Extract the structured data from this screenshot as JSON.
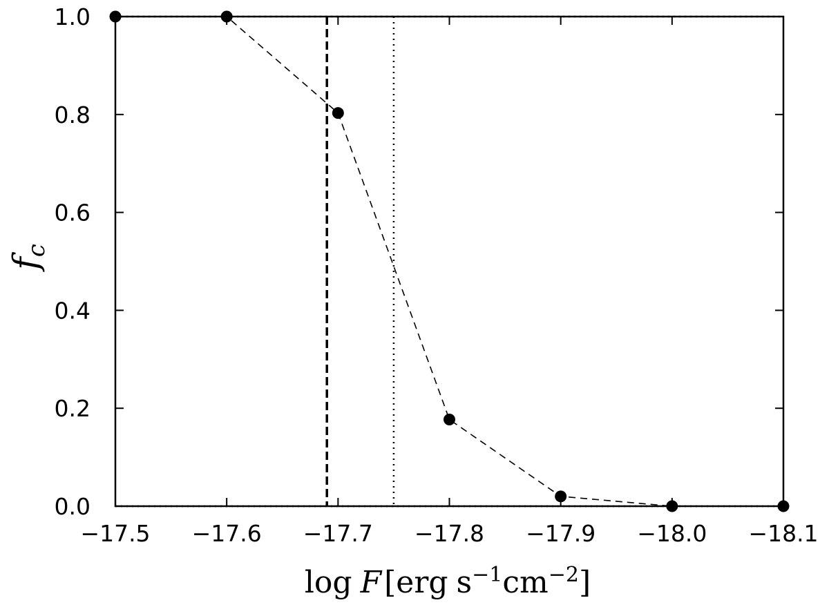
{
  "chart_data": {
    "type": "line",
    "xlabel": "log F [erg s⁻¹cm⁻²]",
    "xlabel_parts": {
      "log": "log",
      "var": "F",
      "bracket_open": "[",
      "erg": "erg",
      "s": "s",
      "s_exp": "−1",
      "cm": "cm",
      "cm_exp": "−2",
      "bracket_close": "]"
    },
    "ylabel": "f",
    "ylabel_sub": "c",
    "xlim": [
      -17.5,
      -18.1
    ],
    "ylim": [
      0.0,
      1.0
    ],
    "x_axis_inverted": true,
    "x_ticks": [
      -17.5,
      -17.6,
      -17.7,
      -17.8,
      -17.9,
      -18.0,
      -18.1
    ],
    "x_tick_labels": [
      "−17.5",
      "−17.6",
      "−17.7",
      "−17.8",
      "−17.9",
      "−18.0",
      "−18.1"
    ],
    "y_ticks": [
      0.0,
      0.2,
      0.4,
      0.6,
      0.8,
      1.0
    ],
    "y_tick_labels": [
      "0.0",
      "0.2",
      "0.4",
      "0.6",
      "0.8",
      "1.0"
    ],
    "series": [
      {
        "x": [
          -17.5,
          -17.6,
          -17.7,
          -17.8,
          -17.9,
          -18.0,
          -18.1
        ],
        "y": [
          1.0,
          1.0,
          0.803,
          0.177,
          0.02,
          0.0,
          0.0
        ],
        "marker": "circle",
        "line_style": "dashed",
        "color": "#000000"
      }
    ],
    "reference_lines": [
      {
        "orientation": "horizontal",
        "value": 1.0,
        "style": "dotted"
      },
      {
        "orientation": "horizontal",
        "value": 0.0,
        "style": "dotted"
      },
      {
        "orientation": "vertical",
        "value": -17.69,
        "style": "dashed"
      },
      {
        "orientation": "vertical",
        "value": -17.75,
        "style": "dotted"
      }
    ],
    "grid": false
  }
}
